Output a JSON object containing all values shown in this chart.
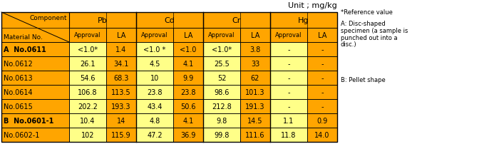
{
  "unit_text": "Unit ; mg/kg",
  "col_groups": [
    "Pb",
    "Cd",
    "Cr",
    "Hg"
  ],
  "row_labels": [
    "A  No.0611",
    "No.0612",
    "No.0613",
    "No.0614",
    "No.0615",
    "B  No.0601-1",
    "No.0602-1"
  ],
  "row_label_bold": [
    true,
    false,
    false,
    false,
    false,
    true,
    false
  ],
  "data": [
    [
      "<1.0*",
      "1.4",
      "<1.0 *",
      "<1.0",
      "<1.0*",
      "3.8",
      "-",
      "-"
    ],
    [
      "26.1",
      "34.1",
      "4.5",
      "4.1",
      "25.5",
      "33",
      "-",
      "-"
    ],
    [
      "54.6",
      "68.3",
      "10",
      "9.9",
      "52",
      "62",
      "-",
      "-"
    ],
    [
      "106.8",
      "113.5",
      "23.8",
      "23.8",
      "98.6",
      "101.3",
      "-",
      "-"
    ],
    [
      "202.2",
      "193.3",
      "43.4",
      "50.6",
      "212.8",
      "191.3",
      "-",
      "-"
    ],
    [
      "10.4",
      "14",
      "4.8",
      "4.1",
      "9.8",
      "14.5",
      "1.1",
      "0.9"
    ],
    [
      "102",
      "115.9",
      "47.2",
      "36.9",
      "99.8",
      "111.6",
      "11.8",
      "14.0"
    ]
  ],
  "col_is_approval": [
    true,
    false,
    true,
    false,
    true,
    false,
    true,
    false
  ],
  "orange": "#FFA500",
  "yellow_light": "#FFFF88",
  "yellow_la": "#FFD700",
  "note_lines": [
    "*Reference value",
    "A: Disc-shaped",
    "specimen (a sample is",
    "punched out into a",
    "disc.)",
    "",
    "B: Pellet shape"
  ]
}
